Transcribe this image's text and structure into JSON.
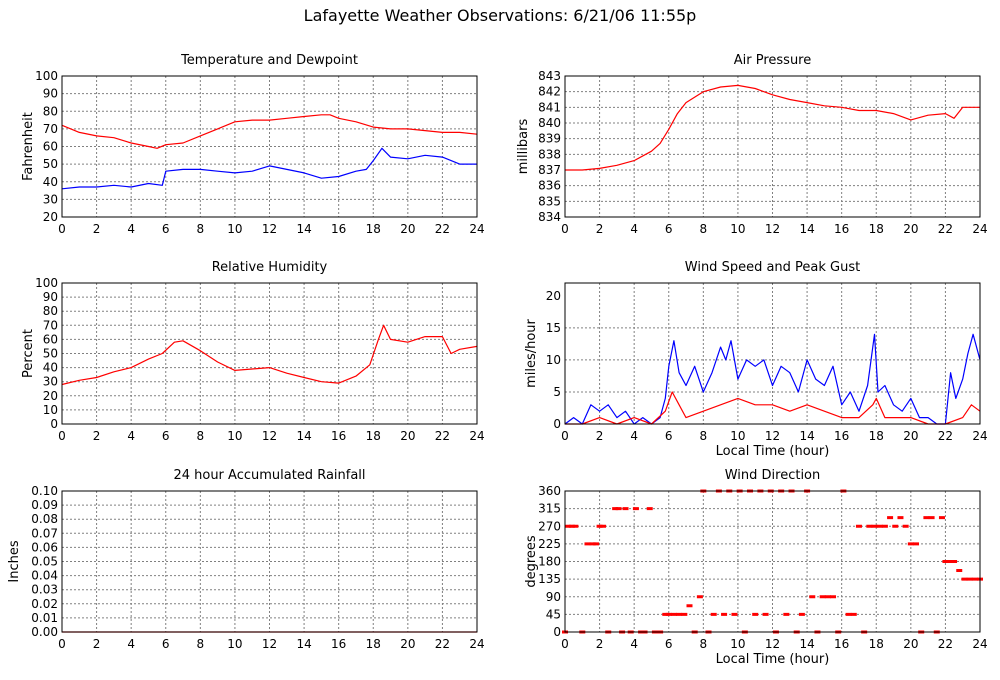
{
  "page_title": "Lafayette Weather Observations: 6/21/06 11:55p",
  "colors": {
    "red": "#ff0000",
    "blue": "#0000ff",
    "grid": "#808080"
  },
  "chart_data": [
    {
      "id": "temp",
      "type": "line",
      "title": "Temperature and Dewpoint",
      "xlabel": "",
      "ylabel": "Fahrenheit",
      "xlim": [
        0,
        24
      ],
      "ylim": [
        20,
        100
      ],
      "xticks": [
        0,
        2,
        4,
        6,
        8,
        10,
        12,
        14,
        16,
        18,
        20,
        22,
        24
      ],
      "yticks": [
        20,
        30,
        40,
        50,
        60,
        70,
        80,
        90,
        100
      ],
      "grid": true,
      "series": [
        {
          "color": "#ff0000",
          "x": [
            0,
            1,
            2,
            3,
            4,
            5,
            5.5,
            6,
            7,
            8,
            9,
            10,
            11,
            12,
            13,
            14,
            15,
            15.5,
            16,
            17,
            18,
            19,
            20,
            21,
            22,
            23,
            24
          ],
          "y": [
            72,
            68,
            66,
            65,
            62,
            60,
            59,
            61,
            62,
            66,
            70,
            74,
            75,
            75,
            76,
            77,
            78,
            78,
            76,
            74,
            71,
            70,
            70,
            69,
            68,
            68,
            67
          ]
        },
        {
          "color": "#0000ff",
          "x": [
            0,
            1,
            2,
            3,
            4,
            5,
            5.8,
            6,
            7,
            8,
            9,
            10,
            11,
            12,
            13,
            14,
            15,
            16,
            17,
            17.6,
            18,
            18.5,
            19,
            20,
            21,
            22,
            23,
            24
          ],
          "y": [
            36,
            37,
            37,
            38,
            37,
            39,
            38,
            46,
            47,
            47,
            46,
            45,
            46,
            49,
            47,
            45,
            42,
            43,
            46,
            47,
            52,
            59,
            54,
            53,
            55,
            54,
            50,
            50
          ]
        }
      ]
    },
    {
      "id": "pressure",
      "type": "line",
      "title": "Air Pressure",
      "xlabel": "",
      "ylabel": "millibars",
      "xlim": [
        0,
        24
      ],
      "ylim": [
        834,
        843
      ],
      "xticks": [
        0,
        2,
        4,
        6,
        8,
        10,
        12,
        14,
        16,
        18,
        20,
        22,
        24
      ],
      "yticks": [
        834,
        835,
        836,
        837,
        838,
        839,
        840,
        841,
        842,
        843
      ],
      "grid": true,
      "series": [
        {
          "color": "#ff0000",
          "x": [
            0,
            1,
            2,
            3,
            4,
            5,
            5.5,
            6,
            6.5,
            7,
            8,
            9,
            10,
            11,
            12,
            13,
            14,
            15,
            16,
            17,
            18,
            19,
            20,
            21,
            22,
            22.5,
            23,
            24
          ],
          "y": [
            837,
            837,
            837.1,
            837.3,
            837.6,
            838.2,
            838.7,
            839.6,
            840.6,
            841.3,
            842,
            842.3,
            842.4,
            842.2,
            841.8,
            841.5,
            841.3,
            841.1,
            841,
            840.8,
            840.8,
            840.6,
            840.2,
            840.5,
            840.6,
            840.3,
            841,
            841
          ]
        }
      ]
    },
    {
      "id": "humidity",
      "type": "line",
      "title": "Relative Humidity",
      "xlabel": "",
      "ylabel": "Percent",
      "xlim": [
        0,
        24
      ],
      "ylim": [
        0,
        100
      ],
      "xticks": [
        0,
        2,
        4,
        6,
        8,
        10,
        12,
        14,
        16,
        18,
        20,
        22,
        24
      ],
      "yticks": [
        0,
        10,
        20,
        30,
        40,
        50,
        60,
        70,
        80,
        90,
        100
      ],
      "grid": true,
      "series": [
        {
          "color": "#ff0000",
          "x": [
            0,
            1,
            2,
            3,
            4,
            5,
            5.8,
            6.5,
            7,
            8,
            9,
            10,
            11,
            12,
            13,
            14,
            15,
            16,
            17,
            17.8,
            18.3,
            18.6,
            19,
            20,
            21,
            22,
            22.5,
            23,
            24
          ],
          "y": [
            28,
            31,
            33,
            37,
            40,
            46,
            50,
            58,
            59,
            52,
            44,
            38,
            39,
            40,
            36,
            33,
            30,
            29,
            34,
            42,
            60,
            70,
            60,
            58,
            62,
            62,
            50,
            53,
            55
          ]
        }
      ]
    },
    {
      "id": "wind",
      "type": "line",
      "title": "Wind Speed and Peak Gust",
      "xlabel": "Local Time (hour)",
      "ylabel": "miles/hour",
      "xlim": [
        0,
        24
      ],
      "ylim": [
        0,
        22
      ],
      "xticks": [
        0,
        2,
        4,
        6,
        8,
        10,
        12,
        14,
        16,
        18,
        20,
        22,
        24
      ],
      "yticks": [
        0,
        5,
        10,
        15,
        20
      ],
      "grid": true,
      "series": [
        {
          "color": "#0000ff",
          "x": [
            0,
            0.5,
            1,
            1.5,
            2,
            2.5,
            3,
            3.5,
            4,
            4.5,
            5,
            5.5,
            5.8,
            6,
            6.3,
            6.6,
            7,
            7.5,
            8,
            8.5,
            9,
            9.3,
            9.6,
            10,
            10.5,
            11,
            11.5,
            12,
            12.5,
            13,
            13.5,
            14,
            14.5,
            15,
            15.5,
            16,
            16.5,
            17,
            17.5,
            17.9,
            18.1,
            18.5,
            19,
            19.5,
            20,
            20.5,
            21,
            21.5,
            22,
            22.3,
            22.6,
            23,
            23.3,
            23.6,
            24
          ],
          "y": [
            0,
            1,
            0,
            3,
            2,
            3,
            1,
            2,
            0,
            1,
            0,
            1,
            4,
            9,
            13,
            8,
            6,
            9,
            5,
            8,
            12,
            10,
            13,
            7,
            10,
            9,
            10,
            6,
            9,
            8,
            5,
            10,
            7,
            6,
            9,
            3,
            5,
            2,
            6,
            14,
            5,
            6,
            3,
            2,
            4,
            1,
            1,
            0,
            0,
            8,
            4,
            7,
            11,
            14,
            10
          ]
        },
        {
          "color": "#ff0000",
          "x": [
            0,
            1,
            2,
            3,
            4,
            5,
            5.8,
            6.2,
            6.6,
            7,
            8,
            9,
            10,
            11,
            12,
            13,
            14,
            15,
            16,
            17,
            17.8,
            18,
            18.5,
            19,
            20,
            21,
            22,
            23,
            23.5,
            24
          ],
          "y": [
            0,
            0,
            1,
            0,
            1,
            0,
            2,
            5,
            3,
            1,
            2,
            3,
            4,
            3,
            3,
            2,
            3,
            2,
            1,
            1,
            3,
            4,
            1,
            1,
            1,
            0,
            0,
            1,
            3,
            2
          ]
        }
      ]
    },
    {
      "id": "rain",
      "type": "line",
      "title": "24 hour Accumulated Rainfall",
      "xlabel": "",
      "ylabel": "Inches",
      "xlim": [
        0,
        24
      ],
      "ylim": [
        0,
        0.1
      ],
      "xticks": [
        0,
        2,
        4,
        6,
        8,
        10,
        12,
        14,
        16,
        18,
        20,
        22,
        24
      ],
      "yticks": [
        0,
        0.01,
        0.02,
        0.03,
        0.04,
        0.05,
        0.06,
        0.07,
        0.08,
        0.09,
        0.1
      ],
      "ytick_labels": [
        "0.00",
        "0.01",
        "0.02",
        "0.03",
        "0.04",
        "0.05",
        "0.06",
        "0.07",
        "0.08",
        "0.09",
        "0.10"
      ],
      "grid": true,
      "series": [
        {
          "color": "#ff0000",
          "x": [
            0,
            24
          ],
          "y": [
            0,
            0
          ]
        }
      ]
    },
    {
      "id": "winddir",
      "type": "scatter",
      "title": "Wind Direction",
      "xlabel": "Local Time (hour)",
      "ylabel": "degrees",
      "xlim": [
        0,
        24
      ],
      "ylim": [
        0,
        360
      ],
      "xticks": [
        0,
        2,
        4,
        6,
        8,
        10,
        12,
        14,
        16,
        18,
        20,
        22,
        24
      ],
      "yticks": [
        0,
        45,
        90,
        135,
        180,
        225,
        270,
        315,
        360
      ],
      "grid": true,
      "series": [
        {
          "color": "#ff0000",
          "x": [
            0,
            0.2,
            0.4,
            0.6,
            1,
            1.3,
            1.6,
            1.8,
            2,
            2.2,
            2.5,
            2.9,
            3.1,
            3.3,
            3.5,
            3.8,
            4.1,
            4.4,
            4.6,
            4.9,
            5.2,
            5.5,
            5.8,
            6,
            6.3,
            6.6,
            6.9,
            7.2,
            7.5,
            7.8,
            8,
            8.3,
            8.6,
            8.9,
            9.2,
            9.5,
            9.8,
            10.1,
            10.4,
            10.7,
            11,
            11.3,
            11.6,
            11.9,
            12.2,
            12.5,
            12.8,
            13.1,
            13.4,
            13.7,
            14,
            14.3,
            14.6,
            14.9,
            15.2,
            15.5,
            15.8,
            16.1,
            16.4,
            16.7,
            17,
            17.3,
            17.6,
            17.9,
            18.2,
            18.5,
            18.8,
            19.1,
            19.4,
            19.7,
            20,
            20.3,
            20.6,
            20.9,
            21.2,
            21.5,
            21.8,
            22,
            22.2,
            22.5,
            22.8,
            23.1,
            23.4,
            23.7,
            24
          ],
          "y": [
            0,
            270,
            270,
            270,
            0,
            225,
            225,
            225,
            270,
            270,
            0,
            315,
            315,
            0,
            315,
            0,
            315,
            0,
            0,
            315,
            0,
            0,
            45,
            45,
            45,
            45,
            45,
            67,
            0,
            90,
            360,
            0,
            45,
            360,
            45,
            360,
            45,
            360,
            0,
            360,
            45,
            360,
            45,
            360,
            0,
            360,
            45,
            360,
            0,
            45,
            360,
            90,
            0,
            90,
            90,
            90,
            0,
            360,
            45,
            45,
            270,
            0,
            270,
            270,
            270,
            270,
            292,
            270,
            292,
            270,
            225,
            225,
            0,
            292,
            292,
            0,
            292,
            180,
            180,
            180,
            157,
            135,
            135,
            135,
            135
          ]
        }
      ]
    }
  ]
}
